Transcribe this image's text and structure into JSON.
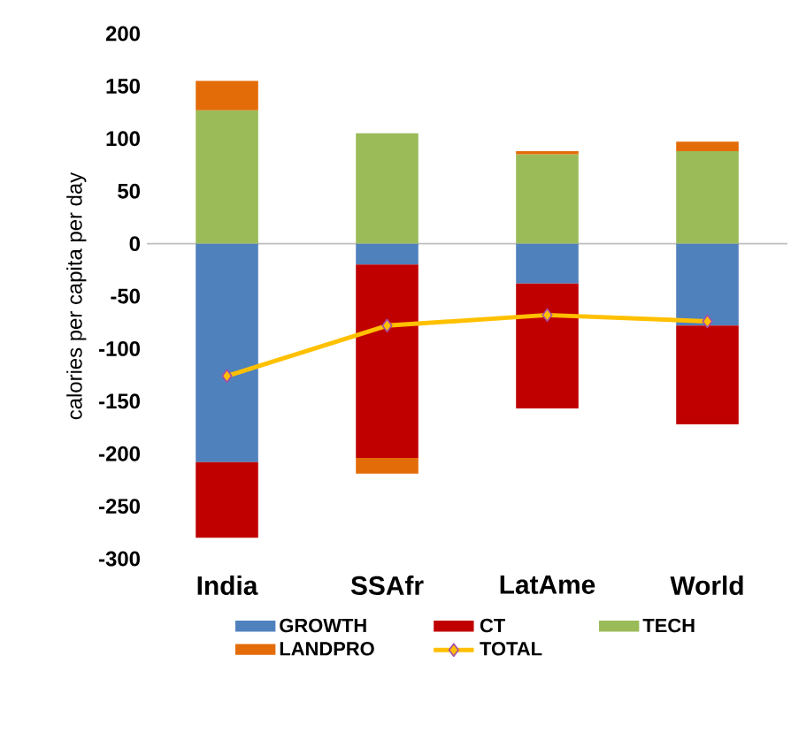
{
  "chart_data": {
    "type": "bar",
    "stacked": true,
    "ylabel": "calories per capita per day",
    "categories": [
      "India",
      "SSAfr",
      "LatAme",
      "World"
    ],
    "series": [
      {
        "name": "GROWTH",
        "color": "#4f81bd",
        "values": [
          -208,
          -20,
          -38,
          -78
        ]
      },
      {
        "name": "CT",
        "color": "#c00000",
        "values": [
          -72,
          -184,
          -119,
          -94
        ]
      },
      {
        "name": "TECH",
        "color": "#9bbb59",
        "values": [
          127,
          105,
          85,
          88
        ]
      },
      {
        "name": "LANDPRO",
        "color": "#e36c09",
        "values": [
          28,
          -15,
          3,
          9
        ]
      },
      {
        "name": "TOTAL",
        "type": "line",
        "color": "#ffc000",
        "marker": "diamond",
        "values": [
          -126,
          -78,
          -68,
          -74
        ]
      }
    ],
    "ylim": [
      -300,
      200
    ],
    "yticks": [
      -300,
      -250,
      -200,
      -150,
      -100,
      -50,
      0,
      50,
      100,
      150,
      200
    ],
    "legend": "bottom"
  }
}
